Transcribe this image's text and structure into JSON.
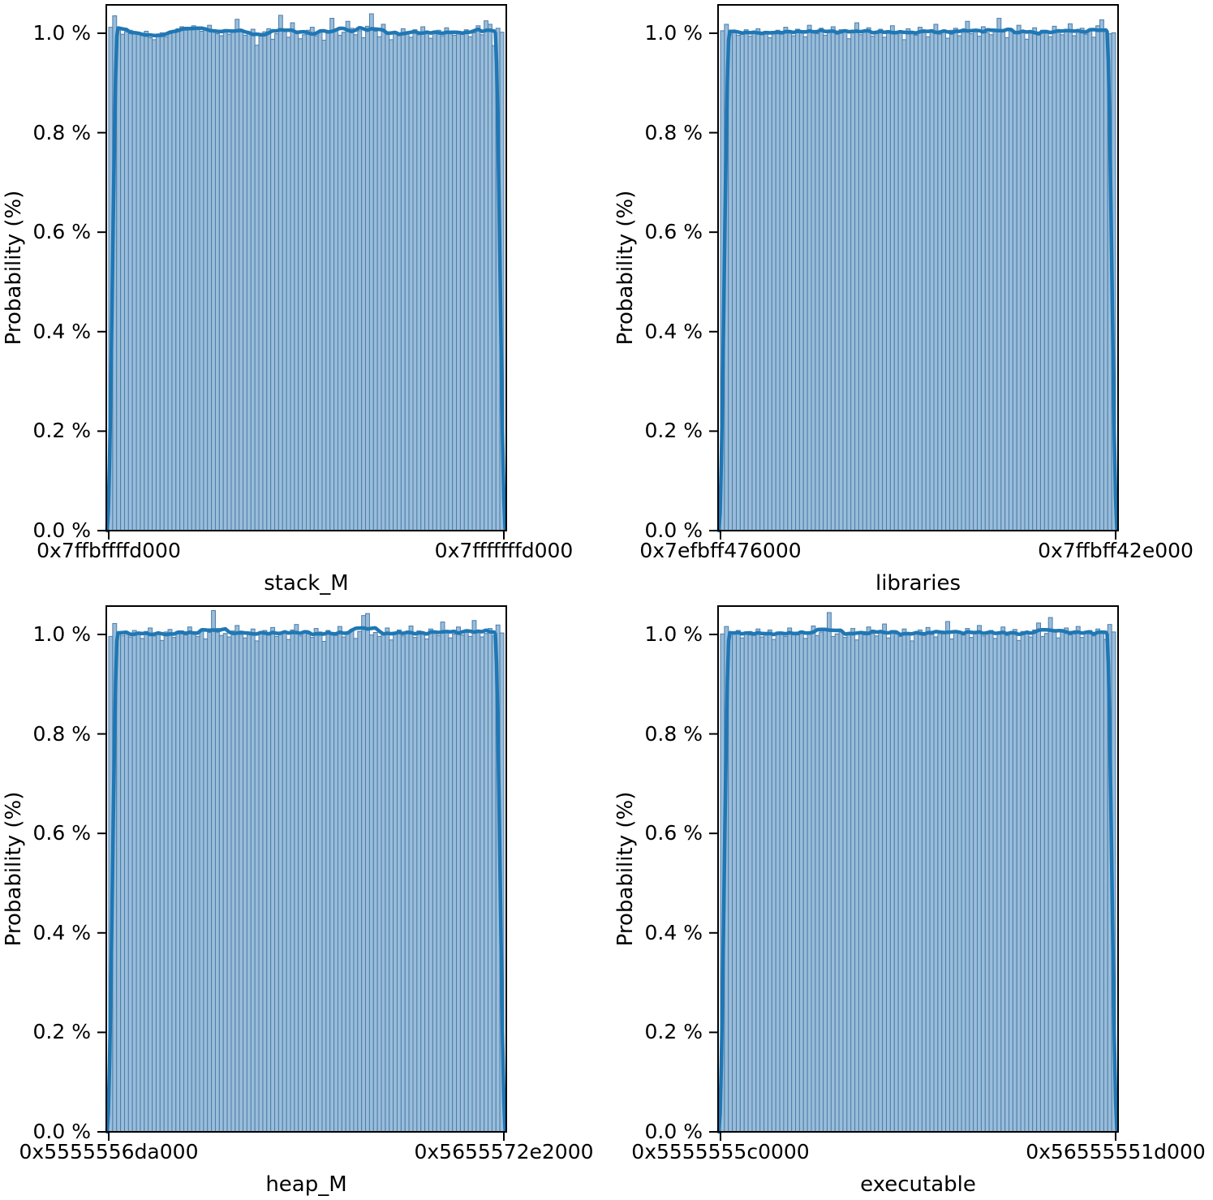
{
  "style": {
    "background": "#ffffff",
    "bar_fill": "#99bdda",
    "bar_edge": "#4e7da9",
    "kde_color": "#1f77b4",
    "axis_color": "#000000",
    "text_color": "#000000"
  },
  "yticks": {
    "values": [
      0.0,
      0.2,
      0.4,
      0.6,
      0.8,
      1.0
    ],
    "labels": [
      "0.0 %",
      "0.2 %",
      "0.4 %",
      "0.6 %",
      "0.8 %",
      "1.0 %"
    ]
  },
  "chart_data": [
    {
      "type": "bar",
      "subtype": "histogram_with_kde",
      "name": "stack_M",
      "xlabel": "stack_M",
      "ylabel": "Probability (%)",
      "xtick_labels": [
        "0x7ffbffffd000",
        "0x7fffffffd000"
      ],
      "bins": 100,
      "ylim": [
        0,
        1.057
      ],
      "grid": false,
      "legend": false,
      "bar_values": [
        1.012,
        1.035,
        1.008,
        0.998,
        1.003,
        1.006,
        0.999,
        1.002,
        0.995,
        1.004,
        0.991,
        0.987,
        0.996,
        1.001,
        0.993,
        0.999,
        1.004,
        1.009,
        1.013,
        1.006,
        1.011,
        1.015,
        1.008,
        1.004,
        1.01,
        1.016,
        1.007,
        0.999,
        0.995,
        1.002,
        0.998,
        1.006,
        1.028,
        1.004,
        0.996,
        1.001,
        1.008,
        0.976,
        0.994,
        1.003,
        1.009,
        0.988,
        0.999,
        1.036,
        1.005,
        0.992,
        1.021,
        1.001,
        0.989,
        0.997,
        1.006,
        1.012,
        0.995,
        1.003,
        0.986,
        1.0,
        1.03,
        1.008,
        0.996,
        1.002,
        1.024,
        1.01,
        0.997,
        1.005,
        0.991,
        1.014,
        1.039,
        1.004,
        0.993,
        1.018,
        0.999,
        0.987,
        1.003,
        0.995,
        1.009,
        1.001,
        0.992,
        1.007,
        0.997,
        1.013,
        1.003,
        0.99,
        0.999,
        1.006,
        0.995,
        1.011,
        1.002,
        0.996,
        1.004,
        0.998,
        1.007,
        0.993,
        1.001,
        1.015,
        0.997,
        1.025,
        1.018,
        0.975,
        1.01,
        1.002
      ]
    },
    {
      "type": "bar",
      "subtype": "histogram_with_kde",
      "name": "libraries",
      "xlabel": "libraries",
      "ylabel": "Probability (%)",
      "xtick_labels": [
        "0x7efbff476000",
        "0x7ffbff42e000"
      ],
      "bins": 100,
      "ylim": [
        0,
        1.057
      ],
      "grid": false,
      "legend": false,
      "bar_values": [
        1.005,
        1.018,
        0.998,
        1.003,
        0.996,
        1.001,
        1.007,
        0.994,
        1.002,
        1.009,
        0.997,
        1.004,
        0.991,
        1.0,
        1.006,
        0.998,
        1.012,
        1.003,
        0.995,
        1.008,
        1.001,
        0.993,
        1.016,
        1.005,
        0.999,
        1.01,
        0.996,
        1.004,
        1.013,
        0.998,
        1.007,
        1.002,
        0.989,
        1.006,
        1.021,
        0.997,
        1.003,
        1.011,
        0.994,
        1.0,
        1.008,
        0.992,
        1.005,
        1.015,
        0.999,
        1.002,
        0.987,
        1.009,
        1.004,
        0.996,
        1.012,
        1.001,
        0.993,
        1.007,
        1.018,
        0.998,
        1.003,
        0.99,
        1.006,
        1.01,
        0.995,
        1.002,
        1.024,
        0.999,
        1.008,
        0.994,
        1.013,
        1.001,
        0.997,
        1.005,
        1.03,
        1.003,
        0.991,
        1.009,
        0.999,
        1.016,
        1.004,
        0.988,
        1.002,
        1.011,
        0.996,
        1.006,
        1.0,
        0.993,
        1.014,
        1.003,
        0.997,
        1.008,
        1.019,
        0.995,
        1.002,
        1.01,
        0.998,
        1.005,
        0.992,
        1.015,
        1.027,
        1.004,
        0.999,
        1.001
      ]
    },
    {
      "type": "bar",
      "subtype": "histogram_with_kde",
      "name": "heap_M",
      "xlabel": "heap_M",
      "ylabel": "Probability (%)",
      "xtick_labels": [
        "0x5555556da000",
        "0x5655572e2000"
      ],
      "bins": 100,
      "ylim": [
        0,
        1.057
      ],
      "grid": false,
      "legend": false,
      "bar_values": [
        0.996,
        1.022,
        1.004,
        0.998,
        1.003,
        0.995,
        1.008,
        1.001,
        0.992,
        1.006,
        1.013,
        0.997,
        1.002,
        0.988,
        1.005,
        1.01,
        0.994,
        1.001,
        1.007,
        0.999,
        1.015,
        1.003,
        0.996,
        1.009,
        0.991,
        1.004,
        1.048,
        1.012,
        0.998,
        1.002,
        0.995,
        1.007,
        1.018,
        1.0,
        0.993,
        1.005,
        1.011,
        0.987,
        1.003,
        1.008,
        0.999,
        1.014,
        0.996,
        1.002,
        1.006,
        0.99,
        1.009,
        1.02,
        0.997,
        1.004,
        1.001,
        0.994,
        1.012,
        1.005,
        0.986,
        1.008,
        1.002,
        0.998,
        1.016,
        0.995,
        1.003,
        1.01,
        0.992,
        1.006,
        1.038,
        1.042,
        0.999,
        1.004,
        0.996,
        1.001,
        1.013,
        0.989,
        1.005,
        1.009,
        0.997,
        1.002,
        1.017,
        0.994,
        1.007,
        1.0,
        0.991,
        1.011,
        1.003,
        0.998,
        1.025,
        1.006,
        0.993,
        1.001,
        1.015,
        0.999,
        1.004,
        0.996,
        1.028,
        1.008,
        0.995,
        1.002,
        1.012,
        0.997,
        1.019,
        1.003
      ]
    },
    {
      "type": "bar",
      "subtype": "histogram_with_kde",
      "name": "executable",
      "xlabel": "executable",
      "ylabel": "Probability (%)",
      "xtick_labels": [
        "0x5555555c0000",
        "0x56555551d000"
      ],
      "bins": 100,
      "ylim": [
        0,
        1.057
      ],
      "grid": false,
      "legend": false,
      "bar_values": [
        1.001,
        1.016,
        0.997,
        1.004,
        1.008,
        0.993,
        1.002,
        1.006,
        0.998,
        1.011,
        0.995,
        1.003,
        1.009,
        0.99,
        1.005,
        1.001,
        0.996,
        1.013,
        1.004,
        0.999,
        1.007,
        0.992,
        1.002,
        1.017,
        0.998,
        1.005,
        1.01,
        1.044,
        0.996,
        1.001,
        1.008,
        0.994,
        1.003,
        1.012,
        0.989,
        1.006,
        0.999,
        1.015,
        1.002,
        0.997,
        1.005,
        1.021,
        0.993,
        1.008,
        1.001,
        0.996,
        1.011,
        1.004,
        0.987,
        1.003,
        1.009,
        0.998,
        1.014,
        1.0,
        0.995,
        1.006,
        1.002,
        1.026,
        0.991,
        1.007,
        1.003,
        0.999,
        1.012,
        0.994,
        1.005,
        1.018,
        0.997,
        1.001,
        1.008,
        0.992,
        1.004,
        1.015,
        0.998,
        1.003,
        1.01,
        0.988,
        1.006,
        1.001,
        0.995,
        1.009,
        1.023,
        0.996,
        1.002,
        1.034,
        1.007,
        0.993,
        1.005,
        1.013,
        0.999,
        1.001,
        1.016,
        0.994,
        1.003,
        1.008,
        0.997,
        1.011,
        1.002,
        0.99,
        1.02,
        1.005
      ]
    }
  ]
}
